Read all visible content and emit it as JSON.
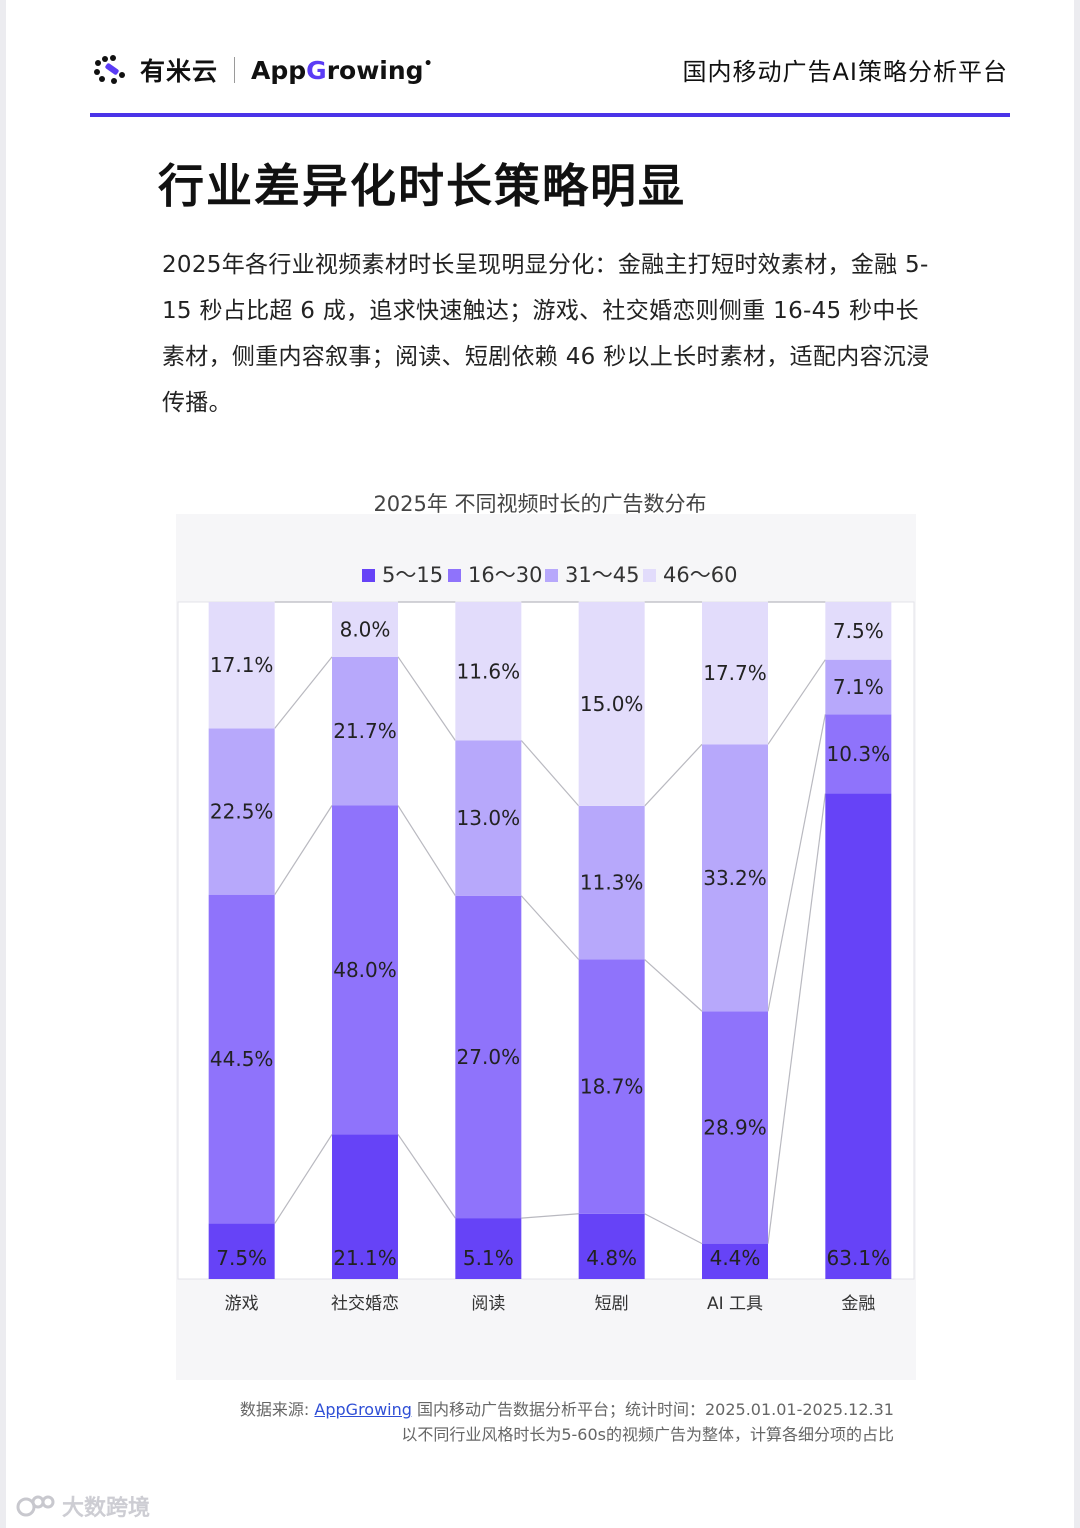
{
  "header": {
    "brand_cn": "有米云",
    "brand_en_prefix": "App",
    "brand_en_g": "G",
    "brand_en_suffix": "rowing",
    "brand_en_mark": "•",
    "tagline": "国内移动广告AI策略分析平台",
    "accent_color": "#4a33e8"
  },
  "page_title": "行业差异化时长策略明显",
  "intro_text": "2025年各行业视频素材时长呈现明显分化：金融主打短时效素材，金融 5-15 秒占比超 6 成，追求快速触达；游戏、社交婚恋则侧重 16-45 秒中长素材，侧重内容叙事；阅读、短剧依赖 46 秒以上长时素材，适配内容沉浸传播。",
  "chart_data": {
    "type": "bar",
    "stacked": true,
    "normalized": true,
    "title": "2025年 不同视频时长的广告数分布",
    "legend_position": "top",
    "categories": [
      "游戏",
      "社交婚恋",
      "阅读",
      "短剧",
      "AI 工具",
      "金融"
    ],
    "series": [
      {
        "name": "5～15",
        "color": "#6643f7",
        "values": [
          7.5,
          21.1,
          5.1,
          4.8,
          4.4,
          63.1
        ]
      },
      {
        "name": "16～30",
        "color": "#8f73fb",
        "values": [
          44.5,
          48.0,
          27.0,
          18.7,
          28.9,
          10.3
        ]
      },
      {
        "name": "31～45",
        "color": "#b7a8fb",
        "values": [
          22.5,
          21.7,
          13.0,
          11.3,
          33.2,
          7.1
        ]
      },
      {
        "name": "46～60",
        "color": "#e2dcfb",
        "values": [
          17.1,
          8.0,
          11.6,
          15.0,
          17.7,
          7.5
        ]
      }
    ],
    "data_labels": [
      [
        "7.5%",
        "21.1%",
        "5.1%",
        "4.8%",
        "4.4%",
        "63.1%"
      ],
      [
        "44.5%",
        "48.0%",
        "27.0%",
        "18.7%",
        "28.9%",
        "10.3%"
      ],
      [
        "22.5%",
        "21.7%",
        "13.0%",
        "11.3%",
        "33.2%",
        "7.1%"
      ],
      [
        "17.1%",
        "8.0%",
        "11.6%",
        "15.0%",
        "17.7%",
        "7.5%"
      ]
    ],
    "series_connectors": true
  },
  "source": {
    "prefix": "数据来源: ",
    "link": "AppGrowing",
    "rest": " 国内移动广告数据分析平台；统计时间：2025.01.01-2025.12.31",
    "note": "以不同行业风格时长为5-60s的视频广告为整体，计算各细分项的占比"
  },
  "watermark": "大数跨境"
}
